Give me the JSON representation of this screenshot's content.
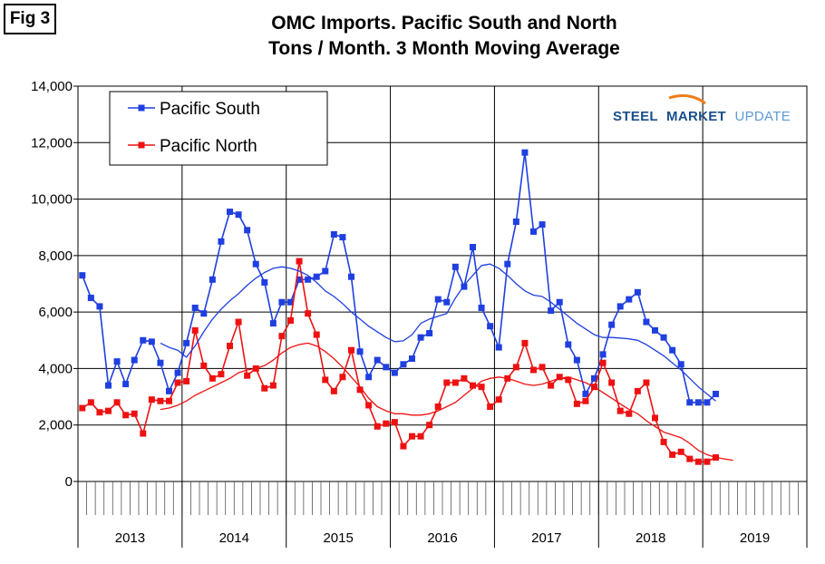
{
  "figure": {
    "label": "Fig 3"
  },
  "brand": {
    "word1": "STEEL",
    "word2": "MARKET",
    "word3": "UPDATE",
    "color_dark": "#1b4f8a",
    "color_light": "#5b9bd5",
    "swoosh_color": "#ef7d1a"
  },
  "colors": {
    "pacific_south": "#1f3fe0",
    "pacific_north": "#ee1111"
  },
  "chart_data": {
    "type": "line",
    "title": "OMC Imports. Pacific South and North",
    "subtitle": "Tons / Month. 3 Month Moving Average",
    "xlabel": "",
    "ylabel": "",
    "ylim": [
      0,
      14000
    ],
    "yticks": [
      0,
      2000,
      4000,
      6000,
      8000,
      10000,
      12000,
      14000
    ],
    "ytick_labels": [
      "0",
      "2,000",
      "4,000",
      "6,000",
      "8,000",
      "10,000",
      "12,000",
      "14,000"
    ],
    "x_start_month": "2013-01",
    "months_count": 84,
    "year_labels": [
      "2013",
      "2014",
      "2015",
      "2016",
      "2017",
      "2018",
      "2019"
    ],
    "grid": true,
    "legend_position": "top-left",
    "series": [
      {
        "name": "Pacific South",
        "color": "#1f3fe0",
        "marker": "square",
        "values": [
          7300,
          6500,
          6200,
          3400,
          4250,
          3450,
          4300,
          5000,
          4950,
          4200,
          3200,
          3850,
          4900,
          6150,
          5950,
          7150,
          8500,
          9550,
          9450,
          8900,
          7700,
          7050,
          5600,
          6350,
          6350,
          7150,
          7150,
          7250,
          7450,
          8750,
          8650,
          7250,
          4600,
          3700,
          4300,
          4050,
          3850,
          4150,
          4350,
          5100,
          5250,
          6450,
          6350,
          7600,
          6900,
          8300,
          6150,
          5500,
          4750,
          7700,
          9200,
          11650,
          8850,
          9100,
          6050,
          6350,
          4850,
          4300,
          3100,
          3650,
          4500,
          5550,
          6200,
          6450,
          6700,
          5650,
          5350,
          5100,
          4650,
          4150,
          2800,
          2800,
          2800,
          3100
        ]
      },
      {
        "name": "Pacific North",
        "color": "#ee1111",
        "marker": "square",
        "values": [
          2600,
          2800,
          2450,
          2500,
          2800,
          2350,
          2400,
          1700,
          2900,
          2850,
          2850,
          3500,
          3550,
          5350,
          4100,
          3650,
          3800,
          4800,
          5650,
          3750,
          4000,
          3300,
          3400,
          5150,
          5700,
          7800,
          5950,
          5200,
          3600,
          3200,
          3700,
          4650,
          3250,
          2700,
          1950,
          2050,
          2100,
          1250,
          1600,
          1600,
          2000,
          2650,
          3500,
          3500,
          3650,
          3400,
          3350,
          2650,
          2900,
          3650,
          4050,
          4900,
          3950,
          4050,
          3400,
          3700,
          3600,
          2750,
          2850,
          3350,
          4200,
          3500,
          2500,
          2400,
          3200,
          3500,
          2250,
          1400,
          950,
          1050,
          800,
          700,
          700,
          850
        ]
      },
      {
        "name": "",
        "role": "trend of Pacific South",
        "color": "#1f3fe0",
        "start_index": 9,
        "values": [
          4900,
          4750,
          4650,
          4400,
          4800,
          5300,
          5750,
          6100,
          6400,
          6650,
          6950,
          7200,
          7400,
          7550,
          7600,
          7550,
          7450,
          7300,
          7050,
          6750,
          6550,
          6300,
          6000,
          5750,
          5500,
          5300,
          5100,
          4950,
          4980,
          5200,
          5600,
          5750,
          5850,
          5950,
          6500,
          6950,
          7300,
          7650,
          7700,
          7550,
          7300,
          7000,
          6750,
          6600,
          6550,
          6350,
          6100,
          5850,
          5600,
          5400,
          5200,
          5100,
          5100,
          5080,
          5050,
          5000,
          4850,
          4650,
          4450,
          4200,
          3950,
          3650,
          3350,
          3100,
          2850
        ]
      },
      {
        "name": "",
        "role": "trend of Pacific North",
        "color": "#ee1111",
        "start_index": 9,
        "values": [
          2550,
          2600,
          2700,
          2850,
          3050,
          3200,
          3350,
          3500,
          3650,
          3850,
          3950,
          4000,
          4100,
          4300,
          4550,
          4750,
          4850,
          4900,
          4800,
          4600,
          4350,
          4050,
          3700,
          3350,
          2950,
          2650,
          2500,
          2400,
          2400,
          2350,
          2350,
          2400,
          2500,
          2650,
          2800,
          3050,
          3300,
          3550,
          3650,
          3700,
          3650,
          3550,
          3450,
          3400,
          3450,
          3550,
          3650,
          3700,
          3600,
          3500,
          3350,
          3150,
          2950,
          2750,
          2550,
          2400,
          2150,
          1950,
          1750,
          1650,
          1550,
          1350,
          1100,
          950,
          850,
          800,
          750
        ]
      }
    ]
  }
}
